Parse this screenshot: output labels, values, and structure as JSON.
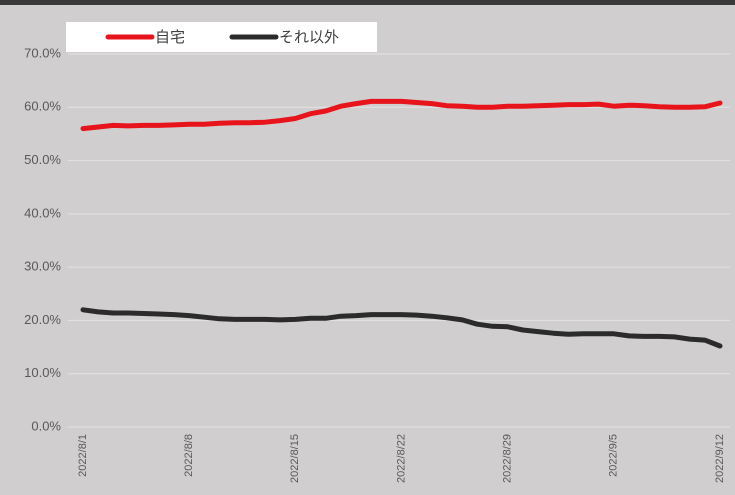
{
  "chart_data": {
    "type": "line",
    "categories": [
      "2022/8/1",
      null,
      null,
      null,
      null,
      null,
      null,
      "2022/8/8",
      null,
      null,
      null,
      null,
      null,
      null,
      "2022/8/15",
      null,
      null,
      null,
      null,
      null,
      null,
      "2022/8/22",
      null,
      null,
      null,
      null,
      null,
      null,
      "2022/8/29",
      null,
      null,
      null,
      null,
      null,
      null,
      "2022/9/5",
      null,
      null,
      null,
      null,
      null,
      null,
      "2022/9/12"
    ],
    "series": [
      {
        "name": "自宅",
        "color": "#e8141c",
        "values": [
          56.0,
          56.3,
          56.6,
          56.5,
          56.6,
          56.6,
          56.7,
          56.8,
          56.8,
          57.0,
          57.1,
          57.1,
          57.2,
          57.5,
          57.9,
          58.8,
          59.3,
          60.2,
          60.7,
          61.1,
          61.1,
          61.1,
          60.9,
          60.7,
          60.3,
          60.2,
          60.0,
          60.0,
          60.2,
          60.2,
          60.3,
          60.4,
          60.5,
          60.5,
          60.6,
          60.2,
          60.4,
          60.3,
          60.1,
          60.0,
          60.0,
          60.1,
          60.8
        ]
      },
      {
        "name": "それ以外",
        "color": "#2b2b2b",
        "values": [
          22.0,
          21.6,
          21.4,
          21.4,
          21.3,
          21.2,
          21.1,
          20.9,
          20.6,
          20.3,
          20.2,
          20.2,
          20.2,
          20.1,
          20.2,
          20.4,
          20.4,
          20.8,
          20.9,
          21.1,
          21.1,
          21.1,
          21.0,
          20.8,
          20.5,
          20.1,
          19.3,
          18.9,
          18.8,
          18.2,
          17.9,
          17.6,
          17.4,
          17.5,
          17.5,
          17.5,
          17.1,
          17.0,
          17.0,
          16.9,
          16.5,
          16.3,
          15.2
        ]
      }
    ],
    "ylim": [
      0,
      70
    ],
    "yticks": [
      {
        "value": 0,
        "label": "0.0%"
      },
      {
        "value": 10,
        "label": "10.0%"
      },
      {
        "value": 20,
        "label": "20.0%"
      },
      {
        "value": 30,
        "label": "30.0%"
      },
      {
        "value": 40,
        "label": "40.0%"
      },
      {
        "value": 50,
        "label": "50.0%"
      },
      {
        "value": 60,
        "label": "60.0%"
      },
      {
        "value": 70,
        "label": "70.0%"
      }
    ],
    "grid": true,
    "legend": "top-left"
  }
}
